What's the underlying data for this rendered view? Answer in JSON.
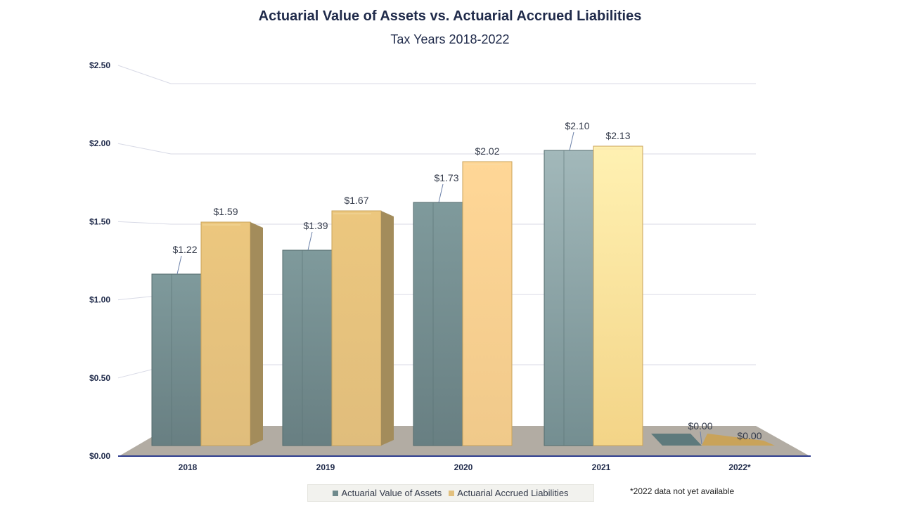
{
  "chart_data": {
    "type": "bar",
    "title": "Actuarial Value of Assets vs. Actuarial Accrued Liabilities",
    "subtitle": "Tax Years 2018-2022",
    "categories": [
      "2018",
      "2019",
      "2020",
      "2021",
      "2022*"
    ],
    "series": [
      {
        "name": "Actuarial Value of Assets",
        "values": [
          1.22,
          1.39,
          1.73,
          2.1,
          0.0
        ],
        "labels": [
          "$1.22",
          "$1.39",
          "$1.73",
          "$2.10",
          "$0.00"
        ],
        "color": "#6f8a8c"
      },
      {
        "name": "Actuarial Accrued Liabilities",
        "values": [
          1.59,
          1.67,
          2.02,
          2.13,
          0.0
        ],
        "labels": [
          "$1.59",
          "$1.67",
          "$2.02",
          "$2.13",
          "$0.00"
        ],
        "color": "#e2c07e"
      }
    ],
    "yticks": [
      0,
      0.5,
      1,
      1.5,
      2,
      2.5
    ],
    "ytick_labels": [
      "$0.00",
      "$0.50",
      "$1.00",
      "$1.50",
      "$2.00",
      "$2.50"
    ],
    "ylim": [
      0,
      2.5
    ],
    "xlabel": "",
    "ylabel": "",
    "legend_position": "bottom",
    "footnote": "*2022 data not yet available"
  }
}
